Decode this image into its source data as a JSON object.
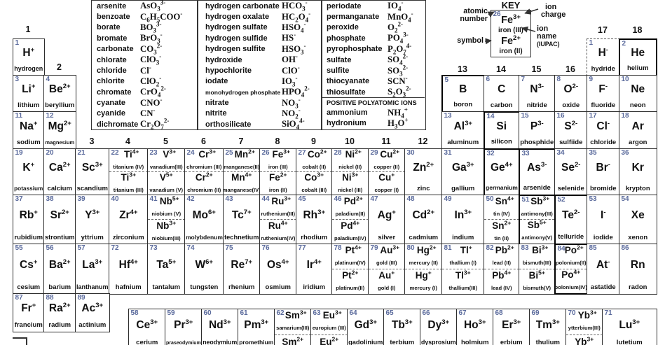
{
  "colors": {
    "number": "#5a6a9c",
    "border": "#2d2d2d",
    "text": "#111111"
  },
  "polyatomic": {
    "panels": [
      {
        "rows": [
          {
            "name": "arsenite",
            "formula": "AsO_3_^3-^"
          },
          {
            "name": "benzoate",
            "formula": "C_6_H_5_COO^-^"
          },
          {
            "name": "borate",
            "formula": "BO_3_^3-^"
          },
          {
            "name": "bromate",
            "formula": "BrO_3_^-^"
          },
          {
            "name": "carbonate",
            "formula": "CO_3_^2-^"
          },
          {
            "name": "chlorate",
            "formula": "ClO_3_^-^"
          },
          {
            "name": "chloride",
            "formula": "Cl^-^"
          },
          {
            "name": "chlorite",
            "formula": "ClO_2_^-^"
          },
          {
            "name": "chromate",
            "formula": "CrO_4_^2-^"
          },
          {
            "name": "cyanate",
            "formula": "CNO^-^"
          },
          {
            "name": "cyanide",
            "formula": "CN^-^"
          },
          {
            "name": "dichromate",
            "formula": "Cr_2_O_7_^2-^"
          }
        ]
      },
      {
        "rows": [
          {
            "name": "hydrogen carbonate",
            "formula": "HCO_3_^-^"
          },
          {
            "name": "hydrogen oxalate",
            "formula": "HC_2_O_4_^-^"
          },
          {
            "name": "hydrogen sulfate",
            "formula": "HSO_4_^-^"
          },
          {
            "name": "hydrogen sulfide",
            "formula": "HS^-^"
          },
          {
            "name": "hydrogen sulfite",
            "formula": "HSO_3_^-^"
          },
          {
            "name": "hydroxide",
            "formula": "OH^-^"
          },
          {
            "name": "hypochlorite",
            "formula": "ClO^-^"
          },
          {
            "name": "iodate",
            "formula": "IO_3_^-^"
          },
          {
            "name": "monohydrogen phosphate",
            "formula": "HPO_4_^2-^"
          },
          {
            "name": "nitrate",
            "formula": "NO_3_^-^"
          },
          {
            "name": "nitrite",
            "formula": "NO_2_^-^"
          },
          {
            "name": "orthosilicate",
            "formula": "SiO_4_^4-^"
          }
        ]
      },
      {
        "rows": [
          {
            "name": "periodate",
            "formula": "IO_4_^-^"
          },
          {
            "name": "permanganate",
            "formula": "MnO_4_^-^"
          },
          {
            "name": "peroxide",
            "formula": "O_2_^2-^"
          },
          {
            "name": "phosphate",
            "formula": "PO_4_^3-^"
          },
          {
            "name": "pyrophosphate",
            "formula": "P_2_O_7_^4-^"
          },
          {
            "name": "sulfate",
            "formula": "SO_4_^2-^"
          },
          {
            "name": "sulfite",
            "formula": "SO_3_^2-^"
          },
          {
            "name": "thiocyanate",
            "formula": "SCN^-^"
          },
          {
            "name": "thiosulfate",
            "formula": "S_2_O_3_^2-^"
          }
        ],
        "positive_header": "POSITIVE POLYATOMIC IONS",
        "positive_rows": [
          {
            "name": "ammonium",
            "formula": "NH_4_^+^"
          },
          {
            "name": "hydronium",
            "formula": "H_3_O^+^"
          }
        ]
      }
    ]
  },
  "key": {
    "title": "KEY",
    "labels": {
      "atomic_number": [
        "atomic",
        "number"
      ],
      "ion_charge": [
        "ion",
        "charge"
      ],
      "ion_name": [
        "ion",
        "name",
        "(IUPAC)"
      ],
      "symbol": "symbol"
    },
    "example": {
      "num": "26",
      "top_sym": "Fe",
      "top_chg": "3+",
      "top_name": "iron (III)",
      "bottom_sym": "Fe",
      "bottom_chg": "2+",
      "bottom_name": "iron (II)"
    }
  },
  "group_labels": [
    "1",
    "2",
    "3",
    "4",
    "5",
    "6",
    "7",
    "8",
    "9",
    "10",
    "11",
    "12",
    "13",
    "14",
    "15",
    "16",
    "17",
    "18"
  ],
  "elements": [
    {
      "num": "1",
      "sym": "H",
      "chg": "+",
      "name": "hydrogen",
      "row": 1,
      "col": 1
    },
    {
      "num": "1",
      "sym": "H",
      "chg": "-",
      "name": "hydride",
      "row": 1,
      "col": 17,
      "cls": "dashed"
    },
    {
      "num": "2",
      "sym": "He",
      "chg": "",
      "name": "helium",
      "row": 1,
      "col": 18,
      "cls": "thick"
    },
    {
      "num": "3",
      "sym": "Li",
      "chg": "+",
      "name": "lithium",
      "row": 2,
      "col": 1
    },
    {
      "num": "4",
      "sym": "Be",
      "chg": "2+",
      "name": "beryllium",
      "row": 2,
      "col": 2
    },
    {
      "num": "5",
      "sym": "B",
      "chg": "",
      "name": "boron",
      "row": 2,
      "col": 13,
      "cls": "metalloid"
    },
    {
      "num": "6",
      "sym": "C",
      "chg": "",
      "name": "carbon",
      "row": 2,
      "col": 14
    },
    {
      "num": "7",
      "sym": "N",
      "chg": "3-",
      "name": "nitride",
      "row": 2,
      "col": 15
    },
    {
      "num": "8",
      "sym": "O",
      "chg": "2-",
      "name": "oxide",
      "row": 2,
      "col": 16
    },
    {
      "num": "9",
      "sym": "F",
      "chg": "-",
      "name": "fluoride",
      "row": 2,
      "col": 17
    },
    {
      "num": "10",
      "sym": "Ne",
      "chg": "",
      "name": "neon",
      "row": 2,
      "col": 18
    },
    {
      "num": "11",
      "sym": "Na",
      "chg": "+",
      "name": "sodium",
      "row": 3,
      "col": 1
    },
    {
      "num": "12",
      "sym": "Mg",
      "chg": "2+",
      "name": "magnesium",
      "row": 3,
      "col": 2
    },
    {
      "num": "13",
      "sym": "Al",
      "chg": "3+",
      "name": "aluminum",
      "row": 3,
      "col": 13
    },
    {
      "num": "14",
      "sym": "Si",
      "chg": "",
      "name": "silicon",
      "row": 3,
      "col": 14,
      "cls": "metalloid"
    },
    {
      "num": "15",
      "sym": "P",
      "chg": "3-",
      "name": "phosphide",
      "row": 3,
      "col": 15
    },
    {
      "num": "16",
      "sym": "S",
      "chg": "2-",
      "name": "sulfiide",
      "row": 3,
      "col": 16
    },
    {
      "num": "17",
      "sym": "Cl",
      "chg": "-",
      "name": "chloride",
      "row": 3,
      "col": 17
    },
    {
      "num": "18",
      "sym": "Ar",
      "chg": "",
      "name": "argon",
      "row": 3,
      "col": 18
    },
    {
      "num": "19",
      "sym": "K",
      "chg": "+",
      "name": "potassium",
      "row": 4,
      "col": 1
    },
    {
      "num": "20",
      "sym": "Ca",
      "chg": "2+",
      "name": "calcium",
      "row": 4,
      "col": 2
    },
    {
      "num": "21",
      "sym": "Sc",
      "chg": "3+",
      "name": "scandium",
      "row": 4,
      "col": 3
    },
    {
      "num": "22",
      "row": 4,
      "col": 4,
      "split": {
        "top": {
          "sym": "Ti",
          "chg": "4+",
          "name": "titanium (IV)"
        },
        "bottom": {
          "sym": "Ti",
          "chg": "3+",
          "name": "titanium (III)"
        }
      }
    },
    {
      "num": "23",
      "row": 4,
      "col": 5,
      "split": {
        "top": {
          "sym": "V",
          "chg": "3+",
          "name": "vanadium(III)"
        },
        "bottom": {
          "sym": "V",
          "chg": "5+",
          "name": "vanadium (V)"
        }
      }
    },
    {
      "num": "24",
      "row": 4,
      "col": 6,
      "split": {
        "top": {
          "sym": "Cr",
          "chg": "3+",
          "name": "chromium (III)"
        },
        "bottom": {
          "sym": "Cr",
          "chg": "2+",
          "name": "chromium (II)"
        }
      }
    },
    {
      "num": "25",
      "row": 4,
      "col": 7,
      "split": {
        "top": {
          "sym": "Mn",
          "chg": "2+",
          "name": "manganese(II)"
        },
        "bottom": {
          "sym": "Mn",
          "chg": "4+",
          "name": "manganese(IV)"
        }
      }
    },
    {
      "num": "26",
      "row": 4,
      "col": 8,
      "split": {
        "top": {
          "sym": "Fe",
          "chg": "3+",
          "name": "iron (III)"
        },
        "bottom": {
          "sym": "Fe",
          "chg": "2+",
          "name": "iron (II)"
        }
      }
    },
    {
      "num": "27",
      "row": 4,
      "col": 9,
      "split": {
        "top": {
          "sym": "Co",
          "chg": "2+",
          "name": "cobalt (II)"
        },
        "bottom": {
          "sym": "Co",
          "chg": "3+",
          "name": "cobalt (III)"
        }
      }
    },
    {
      "num": "28",
      "row": 4,
      "col": 10,
      "split": {
        "top": {
          "sym": "Ni",
          "chg": "2+",
          "name": "nickel (II)"
        },
        "bottom": {
          "sym": "Ni",
          "chg": "3+",
          "name": "nickel (III)"
        }
      }
    },
    {
      "num": "29",
      "row": 4,
      "col": 11,
      "split": {
        "top": {
          "sym": "Cu",
          "chg": "2+",
          "name": "copper (II)"
        },
        "bottom": {
          "sym": "Cu",
          "chg": "+",
          "name": "copper (I)"
        }
      }
    },
    {
      "num": "30",
      "sym": "Zn",
      "chg": "2+",
      "name": "zinc",
      "row": 4,
      "col": 12
    },
    {
      "num": "31",
      "sym": "Ga",
      "chg": "3+",
      "name": "gallium",
      "row": 4,
      "col": 13
    },
    {
      "num": "32",
      "sym": "Ge",
      "chg": "4+",
      "name": "germanium",
      "row": 4,
      "col": 14,
      "cls": "metalloid"
    },
    {
      "num": "33",
      "sym": "As",
      "chg": "3-",
      "name": "arsenide",
      "row": 4,
      "col": 15,
      "cls": "metalloid"
    },
    {
      "num": "34",
      "sym": "Se",
      "chg": "2-",
      "name": "selenide",
      "row": 4,
      "col": 16
    },
    {
      "num": "35",
      "sym": "Br",
      "chg": "-",
      "name": "bromide",
      "row": 4,
      "col": 17
    },
    {
      "num": "36",
      "sym": "Kr",
      "chg": "",
      "name": "krypton",
      "row": 4,
      "col": 18
    },
    {
      "num": "37",
      "sym": "Rb",
      "chg": "+",
      "name": "rubidium",
      "row": 5,
      "col": 1
    },
    {
      "num": "38",
      "sym": "Sr",
      "chg": "2+",
      "name": "strontium",
      "row": 5,
      "col": 2
    },
    {
      "num": "39",
      "sym": "Y",
      "chg": "3+",
      "name": "yttrium",
      "row": 5,
      "col": 3
    },
    {
      "num": "40",
      "sym": "Zr",
      "chg": "4+",
      "name": "zirconium",
      "row": 5,
      "col": 4
    },
    {
      "num": "41",
      "row": 5,
      "col": 5,
      "split": {
        "top": {
          "sym": "Nb",
          "chg": "5+",
          "name": "niobium (V)"
        },
        "bottom": {
          "sym": "Nb",
          "chg": "3+",
          "name": "niobium(III)"
        }
      }
    },
    {
      "num": "42",
      "sym": "Mo",
      "chg": "6+",
      "name": "molybdenum",
      "row": 5,
      "col": 6
    },
    {
      "num": "43",
      "sym": "Tc",
      "chg": "7+",
      "name": "technetium",
      "row": 5,
      "col": 7
    },
    {
      "num": "44",
      "row": 5,
      "col": 8,
      "split": {
        "top": {
          "sym": "Ru",
          "chg": "3+",
          "name": "ruthenium(III)"
        },
        "bottom": {
          "sym": "Ru",
          "chg": "4+",
          "name": "ruthenium(IV)"
        }
      }
    },
    {
      "num": "45",
      "sym": "Rh",
      "chg": "3+",
      "name": "rhodium",
      "row": 5,
      "col": 9
    },
    {
      "num": "46",
      "row": 5,
      "col": 10,
      "split": {
        "top": {
          "sym": "Pd",
          "chg": "2+",
          "name": "paladium(II)"
        },
        "bottom": {
          "sym": "Pd",
          "chg": "4+",
          "name": "paladium(IV)"
        }
      }
    },
    {
      "num": "47",
      "sym": "Ag",
      "chg": "+",
      "name": "silver",
      "row": 5,
      "col": 11
    },
    {
      "num": "48",
      "sym": "Cd",
      "chg": "2+",
      "name": "cadmium",
      "row": 5,
      "col": 12
    },
    {
      "num": "49",
      "sym": "In",
      "chg": "3+",
      "name": "indium",
      "row": 5,
      "col": 13
    },
    {
      "num": "50",
      "row": 5,
      "col": 14,
      "split": {
        "top": {
          "sym": "Sn",
          "chg": "4+",
          "name": "tin (IV)"
        },
        "bottom": {
          "sym": "Sn",
          "chg": "2+",
          "name": "tin (II)"
        }
      }
    },
    {
      "num": "51",
      "row": 5,
      "col": 15,
      "cls": "metalloid",
      "split": {
        "top": {
          "sym": "Sb",
          "chg": "3+",
          "name": "antimony(III)"
        },
        "bottom": {
          "sym": "Sb",
          "chg": "5+",
          "name": "antimony(V)"
        }
      }
    },
    {
      "num": "52",
      "sym": "Te",
      "chg": "2-",
      "name": "telluride",
      "row": 5,
      "col": 16,
      "cls": "metalloid"
    },
    {
      "num": "53",
      "sym": "I",
      "chg": "-",
      "name": "iodide",
      "row": 5,
      "col": 17
    },
    {
      "num": "54",
      "sym": "Xe",
      "chg": "",
      "name": "xenon",
      "row": 5,
      "col": 18
    },
    {
      "num": "55",
      "sym": "Cs",
      "chg": "+",
      "name": "cesium",
      "row": 6,
      "col": 1
    },
    {
      "num": "56",
      "sym": "Ba",
      "chg": "2+",
      "name": "barium",
      "row": 6,
      "col": 2
    },
    {
      "num": "57",
      "sym": "La",
      "chg": "3+",
      "name": "lanthanum",
      "row": 6,
      "col": 3
    },
    {
      "num": "72",
      "sym": "Hf",
      "chg": "4+",
      "name": "hafnium",
      "row": 6,
      "col": 4
    },
    {
      "num": "73",
      "sym": "Ta",
      "chg": "5+",
      "name": "tantalum",
      "row": 6,
      "col": 5
    },
    {
      "num": "74",
      "sym": "W",
      "chg": "6+",
      "name": "tungsten",
      "row": 6,
      "col": 6
    },
    {
      "num": "75",
      "sym": "Re",
      "chg": "7+",
      "name": "rhenium",
      "row": 6,
      "col": 7
    },
    {
      "num": "76",
      "sym": "Os",
      "chg": "4+",
      "name": "osmium",
      "row": 6,
      "col": 8
    },
    {
      "num": "77",
      "sym": "Ir",
      "chg": "4+",
      "name": "iridium",
      "row": 6,
      "col": 9
    },
    {
      "num": "78",
      "row": 6,
      "col": 10,
      "split": {
        "top": {
          "sym": "Pt",
          "chg": "4+",
          "name": "platinum(IV)"
        },
        "bottom": {
          "sym": "Pt",
          "chg": "2+",
          "name": "platinum(II)"
        }
      }
    },
    {
      "num": "79",
      "row": 6,
      "col": 11,
      "split": {
        "top": {
          "sym": "Au",
          "chg": "3+",
          "name": "gold (III)"
        },
        "bottom": {
          "sym": "Au",
          "chg": "+",
          "name": "gold (I)"
        }
      }
    },
    {
      "num": "80",
      "row": 6,
      "col": 12,
      "split": {
        "top": {
          "sym": "Hg",
          "chg": "2+",
          "name": "mercury (II)"
        },
        "bottom": {
          "sym": "Hg",
          "chg": "+",
          "name": "mercury (I)"
        }
      }
    },
    {
      "num": "81",
      "row": 6,
      "col": 13,
      "split": {
        "top": {
          "sym": "Tl",
          "chg": "+",
          "name": "thallium (I)"
        },
        "bottom": {
          "sym": "Tl",
          "chg": "3+",
          "name": "thallium(III)"
        }
      }
    },
    {
      "num": "82",
      "row": 6,
      "col": 14,
      "split": {
        "top": {
          "sym": "Pb",
          "chg": "2+",
          "name": "lead (II)"
        },
        "bottom": {
          "sym": "Pb",
          "chg": "4+",
          "name": "lead (IV)"
        }
      }
    },
    {
      "num": "83",
      "row": 6,
      "col": 15,
      "split": {
        "top": {
          "sym": "Bi",
          "chg": "3+",
          "name": "bismuth(III)"
        },
        "bottom": {
          "sym": "Bi",
          "chg": "5+",
          "name": "bismuth(V)"
        }
      }
    },
    {
      "num": "84",
      "row": 6,
      "col": 16,
      "cls": "metalloid",
      "split": {
        "top": {
          "sym": "Po",
          "chg": "2+",
          "name": "polonium(II)"
        },
        "bottom": {
          "sym": "Po",
          "chg": "4+",
          "name": "polonium(IV)"
        }
      }
    },
    {
      "num": "85",
      "sym": "At",
      "chg": "-",
      "name": "astatide",
      "row": 6,
      "col": 17
    },
    {
      "num": "86",
      "sym": "Rn",
      "chg": "",
      "name": "radon",
      "row": 6,
      "col": 18
    },
    {
      "num": "87",
      "sym": "Fr",
      "chg": "+",
      "name": "francium",
      "row": 7,
      "col": 1
    },
    {
      "num": "88",
      "sym": "Ra",
      "chg": "2+",
      "name": "radium",
      "row": 7,
      "col": 2
    },
    {
      "num": "89",
      "sym": "Ac",
      "chg": "3+",
      "name": "actinium",
      "row": 7,
      "col": 3
    }
  ],
  "lanthanides": [
    {
      "num": "58",
      "sym": "Ce",
      "chg": "3+",
      "name": "cerium"
    },
    {
      "num": "59",
      "sym": "Pr",
      "chg": "3+",
      "name": "praseodymium"
    },
    {
      "num": "60",
      "sym": "Nd",
      "chg": "3+",
      "name": "neodymium"
    },
    {
      "num": "61",
      "sym": "Pm",
      "chg": "3+",
      "name": "promethium"
    },
    {
      "num": "62",
      "split": {
        "top": {
          "sym": "Sm",
          "chg": "3+",
          "name": "samarium(III)"
        },
        "bottom": {
          "sym": "Sm",
          "chg": "2+",
          "name": ""
        }
      }
    },
    {
      "num": "63",
      "split": {
        "top": {
          "sym": "Eu",
          "chg": "3+",
          "name": "europium (III)"
        },
        "bottom": {
          "sym": "Eu",
          "chg": "2+",
          "name": ""
        }
      }
    },
    {
      "num": "64",
      "sym": "Gd",
      "chg": "3+",
      "name": "gadolinium"
    },
    {
      "num": "65",
      "sym": "Tb",
      "chg": "3+",
      "name": "terbium"
    },
    {
      "num": "66",
      "sym": "Dy",
      "chg": "3+",
      "name": "dysprosium"
    },
    {
      "num": "67",
      "sym": "Ho",
      "chg": "3+",
      "name": "holmium"
    },
    {
      "num": "68",
      "sym": "Er",
      "chg": "3+",
      "name": "erbium"
    },
    {
      "num": "69",
      "sym": "Tm",
      "chg": "3+",
      "name": "thulium"
    },
    {
      "num": "70",
      "split": {
        "top": {
          "sym": "Yb",
          "chg": "3+",
          "name": "ytterbium(III)"
        },
        "bottom": {
          "sym": "Yb",
          "chg": "3+",
          "name": ""
        }
      }
    },
    {
      "num": "71",
      "sym": "Lu",
      "chg": "3+",
      "name": "lutetium"
    }
  ]
}
